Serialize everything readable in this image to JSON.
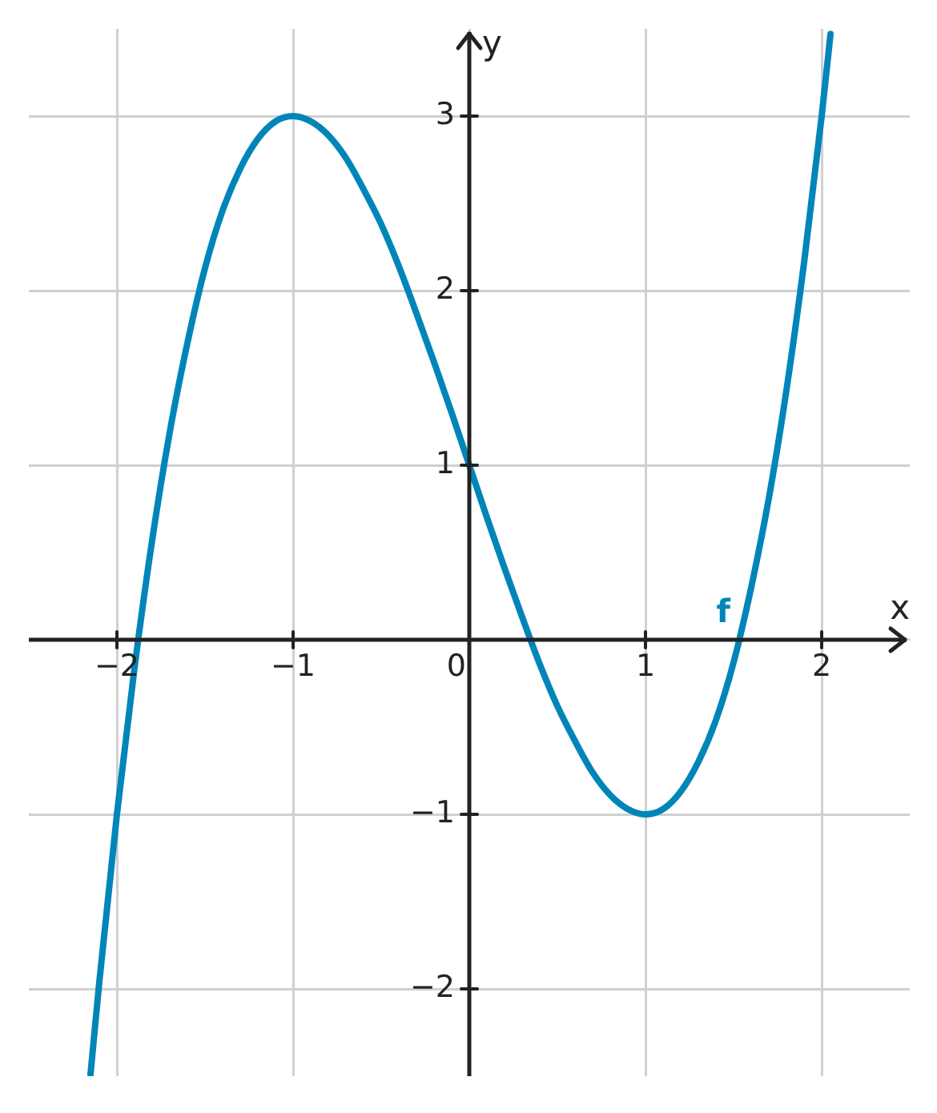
{
  "chart_data": {
    "type": "line",
    "xlabel": "x",
    "ylabel": "y",
    "xlim": [
      -2.5,
      2.5
    ],
    "ylim": [
      -2.5,
      3.5
    ],
    "xticks": [
      -2,
      -1,
      0,
      1,
      2
    ],
    "yticks": [
      -2,
      -1,
      {
        "value": 0,
        "label": null
      },
      1,
      2,
      3
    ],
    "grid": true,
    "legend": false,
    "marker": "none",
    "line_style": "solid",
    "series": [
      {
        "name": "f",
        "color": "#0085b9",
        "x": [
          -2.15,
          -2.1,
          -2.0,
          -1.9,
          -1.8,
          -1.7,
          -1.6,
          -1.5,
          -1.4,
          -1.3,
          -1.2,
          -1.1,
          -1.0,
          -0.9,
          -0.8,
          -0.7,
          -0.6,
          -0.5,
          -0.4,
          -0.3,
          -0.2,
          -0.1,
          0,
          0.1,
          0.2,
          0.3,
          0.4,
          0.5,
          0.6,
          0.7,
          0.8,
          0.9,
          1.0,
          1.1,
          1.2,
          1.3,
          1.4,
          1.5,
          1.6,
          1.7,
          1.8,
          1.9,
          2.0,
          2.05
        ],
        "values": [
          -2.49,
          -1.96,
          -1,
          -0.16,
          0.57,
          1.19,
          1.7,
          2.13,
          2.46,
          2.7,
          2.87,
          2.97,
          3,
          2.97,
          2.89,
          2.76,
          2.58,
          2.38,
          2.14,
          1.87,
          1.59,
          1.3,
          1,
          0.7,
          0.41,
          0.13,
          -0.14,
          -0.38,
          -0.58,
          -0.76,
          -0.89,
          -0.97,
          -1,
          -0.97,
          -0.87,
          -0.7,
          -0.46,
          -0.13,
          0.3,
          0.81,
          1.43,
          2.16,
          3,
          3.47
        ]
      }
    ]
  }
}
